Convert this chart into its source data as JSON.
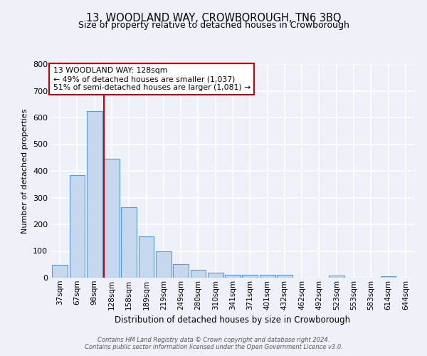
{
  "title": "13, WOODLAND WAY, CROWBOROUGH, TN6 3BQ",
  "subtitle": "Size of property relative to detached houses in Crowborough",
  "xlabel": "Distribution of detached houses by size in Crowborough",
  "ylabel": "Number of detached properties",
  "bar_labels": [
    "37sqm",
    "67sqm",
    "98sqm",
    "128sqm",
    "158sqm",
    "189sqm",
    "219sqm",
    "249sqm",
    "280sqm",
    "310sqm",
    "341sqm",
    "371sqm",
    "401sqm",
    "432sqm",
    "462sqm",
    "492sqm",
    "523sqm",
    "553sqm",
    "583sqm",
    "614sqm",
    "644sqm"
  ],
  "bar_values": [
    48,
    385,
    625,
    445,
    265,
    155,
    100,
    50,
    30,
    18,
    10,
    12,
    12,
    10,
    0,
    0,
    8,
    0,
    0,
    5,
    0
  ],
  "bar_color": "#c5d8ed",
  "bar_edge_color": "#5b9bd5",
  "vline_color": "#cc0000",
  "annotation_text": "13 WOODLAND WAY: 128sqm\n← 49% of detached houses are smaller (1,037)\n51% of semi-detached houses are larger (1,081) →",
  "annotation_box_color": "white",
  "annotation_box_edge_color": "#cc0000",
  "ylim": [
    0,
    800
  ],
  "yticks": [
    0,
    100,
    200,
    300,
    400,
    500,
    600,
    700,
    800
  ],
  "background_color": "#eef2f8",
  "grid_color": "white",
  "footer": "Contains HM Land Registry data © Crown copyright and database right 2024.\nContains public sector information licensed under the Open Government Licence v3.0.",
  "title_fontsize": 10.5,
  "subtitle_fontsize": 9,
  "ylabel_fontsize": 8,
  "xlabel_fontsize": 8.5,
  "tick_fontsize": 7.5,
  "ytick_fontsize": 8
}
